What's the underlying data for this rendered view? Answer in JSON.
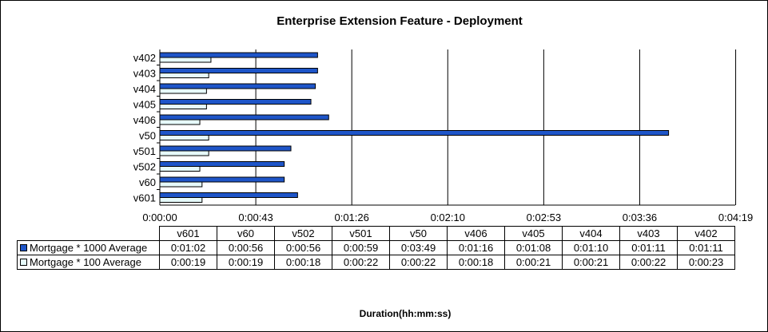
{
  "colors": {
    "series_1000": "#1e55c8",
    "series_100": "#e6fafa"
  },
  "chart_data": {
    "type": "bar",
    "orientation": "horizontal",
    "title": "Enterprise Extension Feature - Deployment",
    "xlabel": "Duration(hh:mm:ss)",
    "ylabel": "",
    "categories": [
      "v402",
      "v403",
      "v404",
      "v405",
      "v406",
      "v50",
      "v501",
      "v502",
      "v60",
      "v601"
    ],
    "series": [
      {
        "name": "Mortgage * 1000 Average",
        "values_seconds": [
          71,
          71,
          70,
          68,
          76,
          229,
          59,
          56,
          56,
          62
        ]
      },
      {
        "name": "Mortgage * 100 Average",
        "values_seconds": [
          23,
          22,
          21,
          21,
          18,
          22,
          22,
          18,
          19,
          19
        ]
      }
    ],
    "xlim_seconds": [
      0,
      259
    ],
    "x_ticks": [
      "0:00:00",
      "0:00:43",
      "0:01:26",
      "0:02:10",
      "0:02:53",
      "0:03:36",
      "0:04:19"
    ],
    "x_tick_values_seconds": [
      0,
      43.2,
      86.4,
      129.6,
      172.8,
      216,
      259.2
    ],
    "grid": "vertical",
    "table": {
      "columns": [
        "v601",
        "v60",
        "v502",
        "v501",
        "v50",
        "v406",
        "v405",
        "v404",
        "v403",
        "v402"
      ],
      "rows": [
        {
          "label": "Mortgage * 1000 Average",
          "values": [
            "0:01:02",
            "0:00:56",
            "0:00:56",
            "0:00:59",
            "0:03:49",
            "0:01:16",
            "0:01:08",
            "0:01:10",
            "0:01:11",
            "0:01:11"
          ]
        },
        {
          "label": "Mortgage * 100 Average",
          "values": [
            "0:00:19",
            "0:00:19",
            "0:00:18",
            "0:00:22",
            "0:00:22",
            "0:00:18",
            "0:00:21",
            "0:00:21",
            "0:00:22",
            "0:00:23"
          ]
        }
      ]
    }
  }
}
